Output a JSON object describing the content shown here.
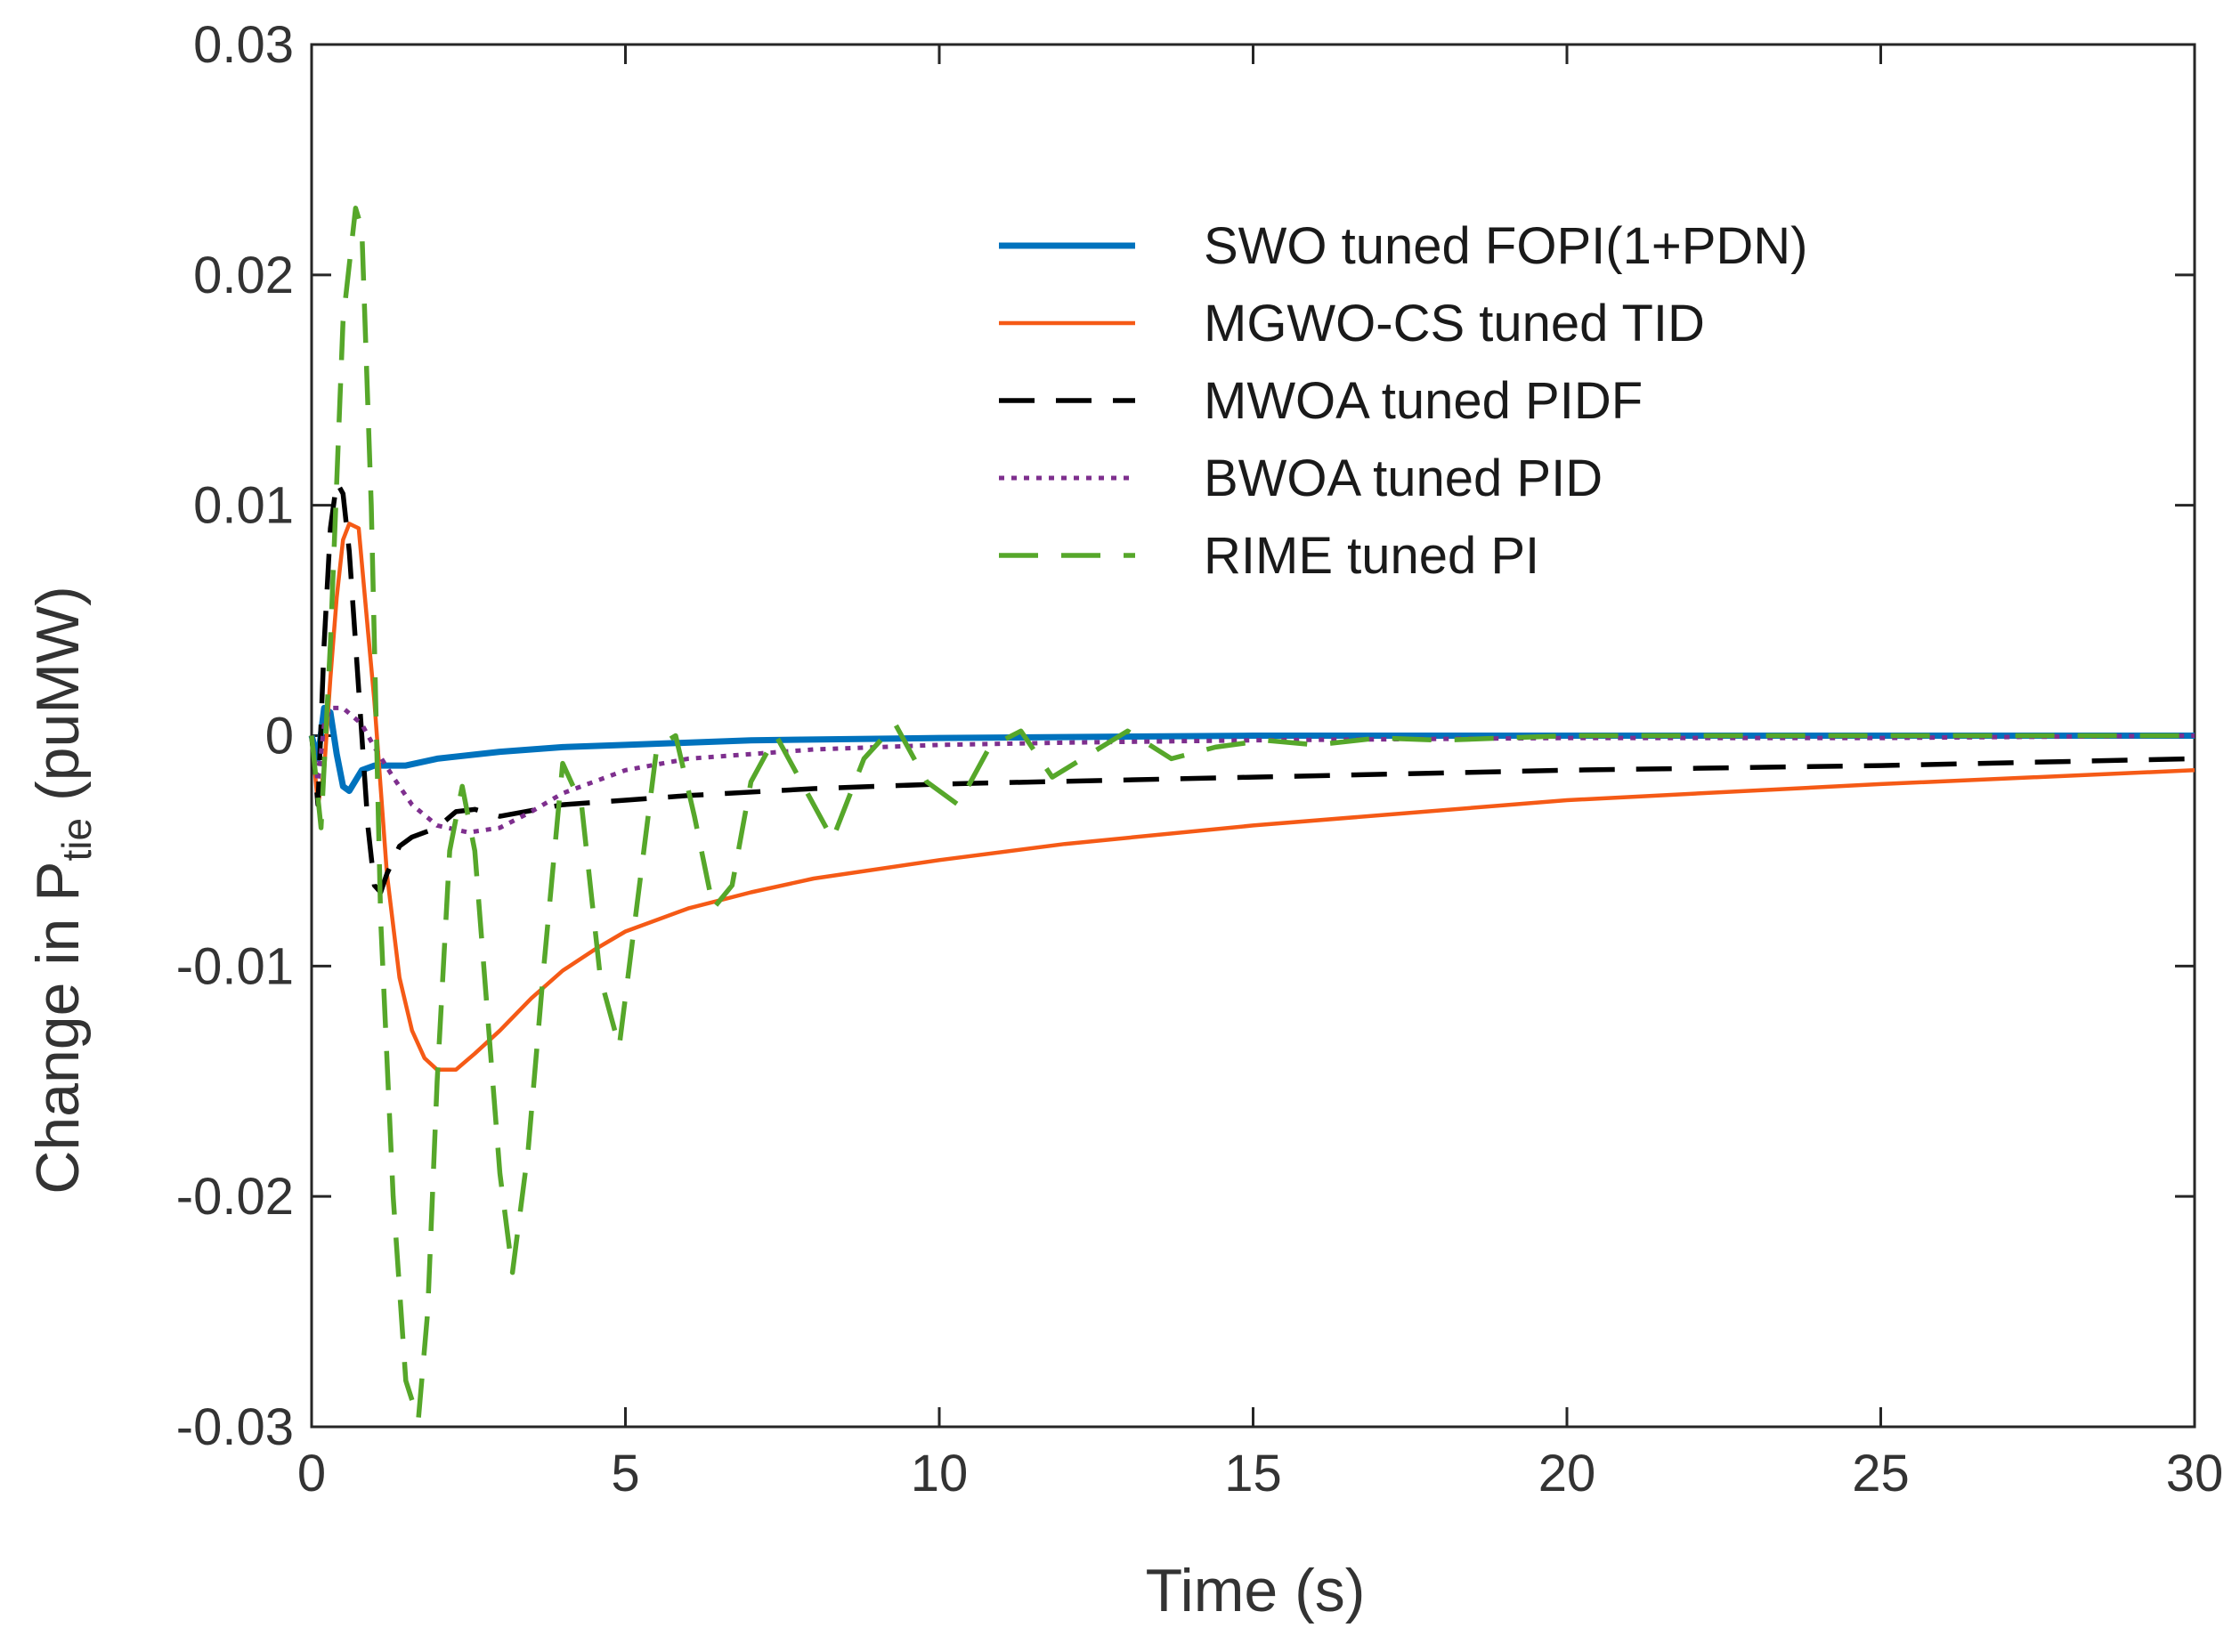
{
  "chart_data": {
    "type": "line",
    "title": "",
    "xlabel": "Time (s)",
    "ylabel": {
      "prefix": "Change in P",
      "subscript": "tie",
      "suffix": " (puMW)"
    },
    "xlim": [
      0,
      30
    ],
    "ylim": [
      -0.03,
      0.03
    ],
    "xticks": [
      0,
      5,
      10,
      15,
      20,
      25,
      30
    ],
    "xtick_labels": [
      "0",
      "5",
      "10",
      "15",
      "20",
      "25",
      "30"
    ],
    "yticks": [
      0.03,
      0.02,
      0.01,
      0,
      -0.01,
      -0.02,
      -0.03
    ],
    "ytick_labels": [
      "0.03",
      "0.02",
      "0.01",
      "0",
      "-0.01",
      "-0.02",
      "-0.03"
    ],
    "grid": false,
    "legend_position": "top-right",
    "series": [
      {
        "name": "SWO tuned FOPI(1+PDN)",
        "color": "#0072BD",
        "style": "solid",
        "width": 7,
        "x": [
          0,
          0.1,
          0.2,
          0.3,
          0.4,
          0.5,
          0.6,
          0.8,
          1.0,
          1.2,
          1.5,
          2,
          3,
          4,
          5,
          7,
          10,
          15,
          20,
          25,
          30
        ],
        "y": [
          0,
          -0.001,
          0.0012,
          0.001,
          -0.0008,
          -0.0022,
          -0.0024,
          -0.0015,
          -0.0013,
          -0.0013,
          -0.0013,
          -0.001,
          -0.0007,
          -0.0005,
          -0.0004,
          -0.0002,
          -0.0001,
          0,
          0,
          0,
          0
        ]
      },
      {
        "name": "MGWO-CS tuned TID",
        "color": "#F55A16",
        "style": "solid",
        "width": 4.5,
        "x": [
          0,
          0.1,
          0.2,
          0.3,
          0.4,
          0.5,
          0.6,
          0.75,
          0.9,
          1.0,
          1.2,
          1.4,
          1.6,
          1.8,
          2.0,
          2.3,
          2.6,
          3,
          3.5,
          4,
          4.5,
          5,
          6,
          7,
          8,
          10,
          12,
          15,
          20,
          25,
          30
        ],
        "y": [
          0,
          -0.003,
          -0.0015,
          0.0025,
          0.006,
          0.0085,
          0.0092,
          0.009,
          0.0045,
          0.0015,
          -0.006,
          -0.0105,
          -0.0128,
          -0.014,
          -0.0145,
          -0.0145,
          -0.0138,
          -0.0128,
          -0.0114,
          -0.0102,
          -0.0093,
          -0.0085,
          -0.0075,
          -0.0068,
          -0.0062,
          -0.0054,
          -0.0047,
          -0.0039,
          -0.0028,
          -0.0021,
          -0.0015
        ]
      },
      {
        "name": "MWOA tuned PIDF",
        "color": "#000000",
        "style": "dash",
        "width": 5.5,
        "x": [
          0,
          0.1,
          0.2,
          0.3,
          0.4,
          0.5,
          0.6,
          0.7,
          0.8,
          0.9,
          1.0,
          1.1,
          1.2,
          1.4,
          1.6,
          1.8,
          2.0,
          2.3,
          2.6,
          3,
          4,
          5,
          6,
          8,
          10,
          15,
          20,
          25,
          30
        ],
        "y": [
          0,
          -0.003,
          0.004,
          0.009,
          0.011,
          0.0105,
          0.008,
          0.004,
          0.0,
          -0.004,
          -0.0065,
          -0.0068,
          -0.006,
          -0.0048,
          -0.0044,
          -0.0042,
          -0.004,
          -0.0033,
          -0.0032,
          -0.0035,
          -0.003,
          -0.0028,
          -0.0026,
          -0.0023,
          -0.0021,
          -0.0018,
          -0.0015,
          -0.0013,
          -0.001
        ]
      },
      {
        "name": "BWOA tuned PID",
        "color": "#7E2F8E",
        "style": "dot",
        "width": 5,
        "x": [
          0,
          0.1,
          0.2,
          0.3,
          0.5,
          0.8,
          1.0,
          1.3,
          1.6,
          2.0,
          2.5,
          3.0,
          3.5,
          4,
          5,
          6,
          7,
          8,
          10,
          12,
          15,
          20,
          25,
          30
        ],
        "y": [
          0,
          -0.002,
          0.0005,
          0.0012,
          0.0012,
          0.0005,
          -0.0005,
          -0.0018,
          -0.003,
          -0.0039,
          -0.0042,
          -0.004,
          -0.0033,
          -0.0025,
          -0.0015,
          -0.001,
          -0.0008,
          -0.0006,
          -0.0004,
          -0.0003,
          -0.0002,
          -0.0001,
          -0.0001,
          0
        ]
      },
      {
        "name": "RIME tuned PI",
        "color": "#56A72A",
        "style": "longdash",
        "width": 5.5,
        "x": [
          0,
          0.15,
          0.3,
          0.5,
          0.7,
          0.8,
          0.95,
          1.1,
          1.3,
          1.5,
          1.7,
          1.85,
          2.0,
          2.2,
          2.4,
          2.6,
          2.8,
          3.0,
          3.2,
          3.45,
          3.7,
          4.0,
          4.3,
          4.6,
          4.9,
          5.2,
          5.5,
          5.8,
          6.1,
          6.4,
          6.7,
          7.0,
          7.4,
          7.8,
          8.3,
          8.8,
          9.3,
          9.8,
          10.3,
          10.8,
          11.3,
          11.8,
          12.4,
          13.0,
          13.7,
          14.4,
          15.2,
          16.0,
          17.0,
          18.0,
          20.0,
          22.0,
          25.0,
          30.0
        ],
        "y": [
          0,
          -0.004,
          0.004,
          0.018,
          0.0229,
          0.022,
          0.01,
          -0.008,
          -0.02,
          -0.028,
          -0.0297,
          -0.025,
          -0.015,
          -0.005,
          -0.0022,
          -0.005,
          -0.012,
          -0.019,
          -0.0233,
          -0.018,
          -0.01,
          -0.0012,
          -0.003,
          -0.0105,
          -0.0135,
          -0.007,
          -0.0005,
          0.0,
          -0.0035,
          -0.0075,
          -0.0065,
          -0.002,
          0.0,
          -0.002,
          -0.0045,
          -0.001,
          0.0005,
          -0.002,
          -0.003,
          -0.0005,
          0.0002,
          -0.0018,
          -0.0008,
          0.0002,
          -0.001,
          -0.0005,
          -0.0002,
          -0.0004,
          -0.0001,
          -0.0002,
          0,
          0,
          0,
          0
        ]
      }
    ]
  }
}
